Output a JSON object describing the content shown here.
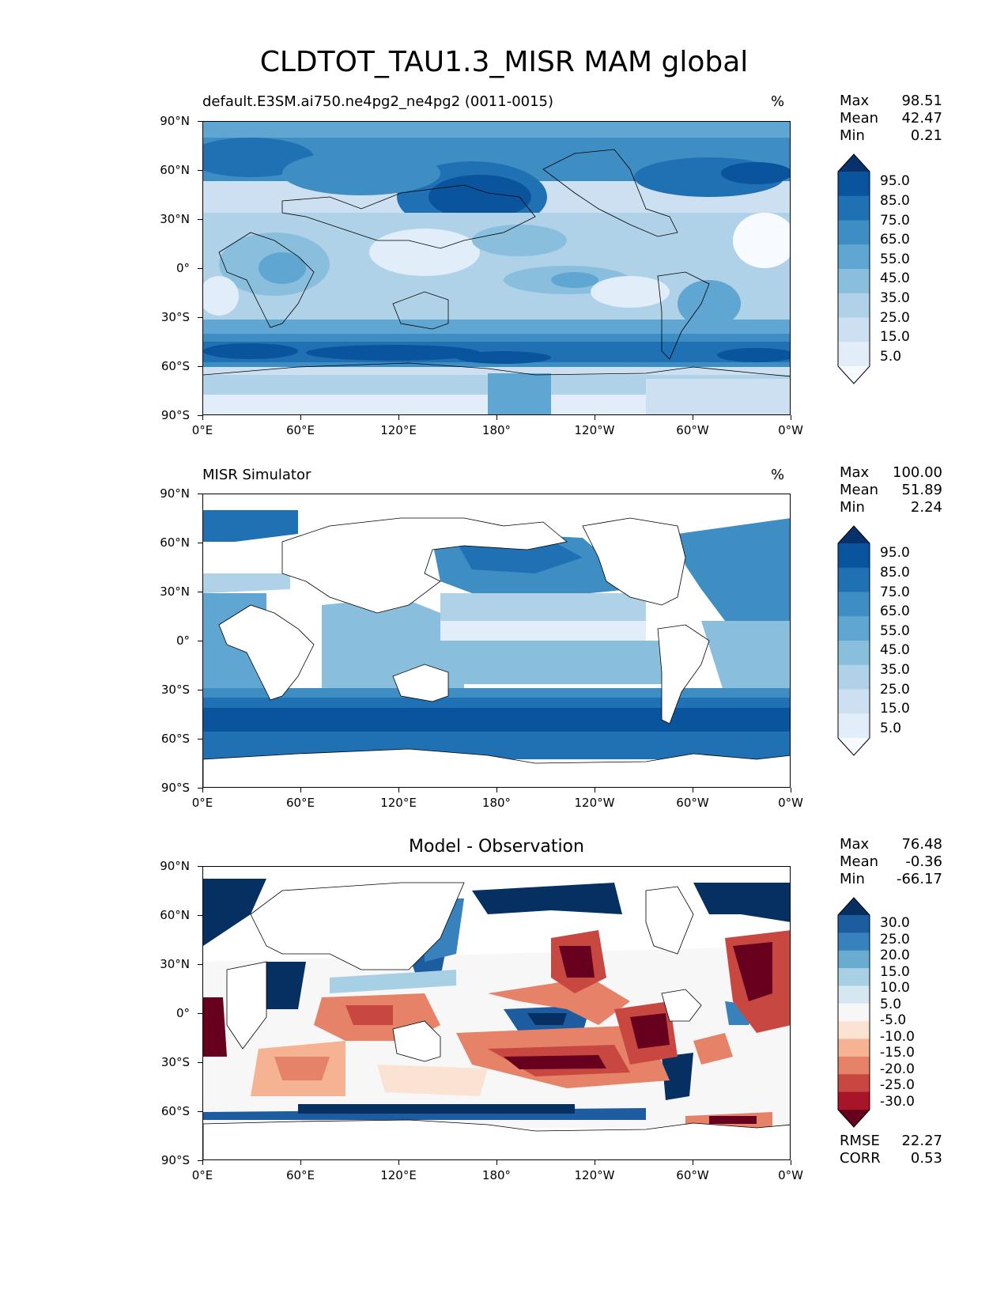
{
  "figure": {
    "title": "CLDTOT_TAU1.3_MISR MAM global"
  },
  "axes": {
    "lat_ticks": [
      "90°N",
      "60°N",
      "30°N",
      "0°",
      "30°S",
      "60°S",
      "90°S"
    ],
    "lon_ticks": [
      "0°E",
      "60°E",
      "120°E",
      "180°",
      "120°W",
      "60°W",
      "0°W"
    ]
  },
  "colors": {
    "blues": [
      "#f7fbff",
      "#e1edf8",
      "#cde0f1",
      "#b0d2e8",
      "#89bfdd",
      "#60a6d2",
      "#3e8ec4",
      "#2070b4",
      "#0a549e",
      "#08306b"
    ],
    "diverging": [
      "#67001f",
      "#a81529",
      "#c94741",
      "#e58267",
      "#f6b394",
      "#fbe3d4",
      "#f7f7f7",
      "#d5e7f1",
      "#a7d0e4",
      "#6aacd0",
      "#3782bc",
      "#1c5c9f",
      "#053061"
    ],
    "land": "#ffffff",
    "coast": "#000000"
  },
  "panels": [
    {
      "title_left": "default.E3SM.ai750.ne4pg2_ne4pg2 (0011-0015)",
      "title_right": "%",
      "title_center": "",
      "stats": [
        {
          "label": "Max",
          "value": "98.51"
        },
        {
          "label": "Mean",
          "value": "42.47"
        },
        {
          "label": "Min",
          "value": "0.21"
        }
      ],
      "colorbar": {
        "palette": "blues",
        "levels": [
          "95.0",
          "85.0",
          "75.0",
          "65.0",
          "55.0",
          "45.0",
          "35.0",
          "25.0",
          "15.0",
          "5.0"
        ]
      }
    },
    {
      "title_left": "MISR Simulator",
      "title_right": "%",
      "title_center": "",
      "stats": [
        {
          "label": "Max",
          "value": "100.00"
        },
        {
          "label": "Mean",
          "value": "51.89"
        },
        {
          "label": "Min",
          "value": "2.24"
        }
      ],
      "colorbar": {
        "palette": "blues",
        "levels": [
          "95.0",
          "85.0",
          "75.0",
          "65.0",
          "55.0",
          "45.0",
          "35.0",
          "25.0",
          "15.0",
          "5.0"
        ]
      }
    },
    {
      "title_left": "",
      "title_right": "",
      "title_center": "Model - Observation",
      "stats": [
        {
          "label": "Max",
          "value": "76.48"
        },
        {
          "label": "Mean",
          "value": "-0.36"
        },
        {
          "label": "Min",
          "value": "-66.17"
        }
      ],
      "extra_stats": [
        {
          "label": "RMSE",
          "value": "22.27"
        },
        {
          "label": "CORR",
          "value": "0.53"
        }
      ],
      "colorbar": {
        "palette": "diverging",
        "levels": [
          "30.0",
          "25.0",
          "20.0",
          "15.0",
          "10.0",
          "5.0",
          "-5.0",
          "-10.0",
          "-15.0",
          "-20.0",
          "-25.0",
          "-30.0"
        ]
      }
    }
  ]
}
